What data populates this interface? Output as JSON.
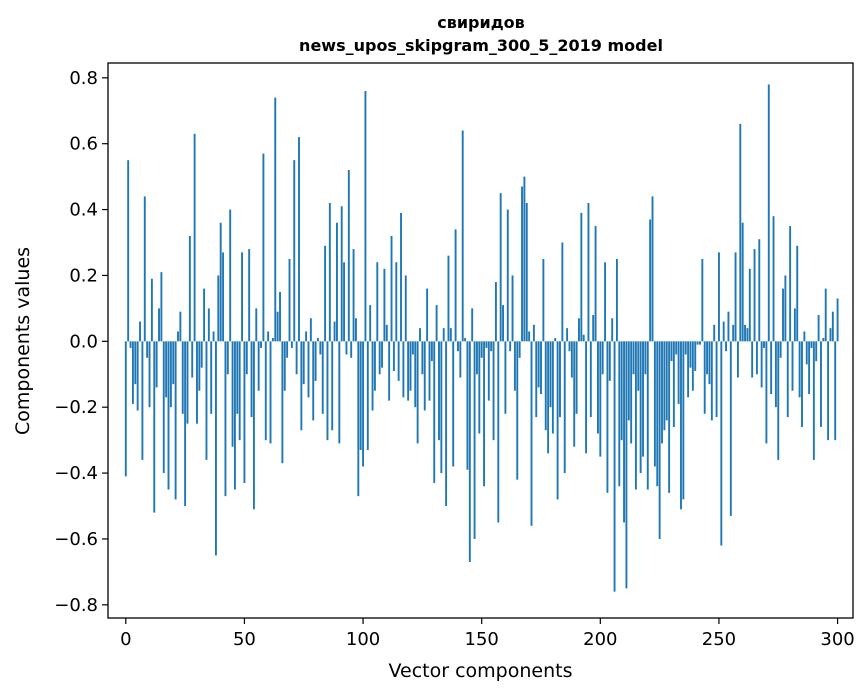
{
  "chart_data": {
    "type": "bar",
    "title_line1": "свиридов",
    "title_line2": "news_upos_skipgram_300_5_2019 model",
    "xlabel": "Vector components",
    "ylabel": "Components values",
    "xlim": [
      -7.5,
      306.5
    ],
    "ylim": [
      -0.84,
      0.845
    ],
    "xticks": [
      0,
      50,
      100,
      150,
      200,
      250,
      300
    ],
    "xtick_labels": [
      "0",
      "50",
      "100",
      "150",
      "200",
      "250",
      "300"
    ],
    "yticks": [
      -0.8,
      -0.6,
      -0.4,
      -0.2,
      0.0,
      0.2,
      0.4,
      0.6,
      0.8
    ],
    "ytick_labels": [
      "−0.8",
      "−0.6",
      "−0.4",
      "−0.2",
      "0.0",
      "0.2",
      "0.4",
      "0.6",
      "0.8"
    ],
    "bar_color": "#1f77b4",
    "grid": false,
    "values": [
      -0.41,
      0.55,
      -0.02,
      -0.19,
      -0.13,
      -0.21,
      0.06,
      -0.36,
      0.44,
      -0.05,
      -0.2,
      0.19,
      -0.52,
      -0.14,
      0.1,
      0.21,
      -0.4,
      -0.17,
      -0.45,
      -0.2,
      -0.13,
      -0.48,
      0.03,
      0.09,
      -0.22,
      -0.5,
      -0.25,
      0.32,
      -0.11,
      0.63,
      -0.25,
      -0.15,
      -0.08,
      0.16,
      -0.36,
      0.1,
      -0.22,
      0.03,
      -0.65,
      0.2,
      0.36,
      0.27,
      -0.47,
      -0.1,
      0.4,
      -0.32,
      -0.45,
      -0.22,
      -0.3,
      0.27,
      -0.43,
      -0.1,
      0.28,
      -0.23,
      -0.51,
      0.1,
      -0.15,
      -0.02,
      0.57,
      -0.3,
      0.03,
      -0.31,
      0.01,
      0.74,
      0.09,
      0.15,
      -0.37,
      -0.15,
      -0.05,
      0.25,
      -0.02,
      0.55,
      -0.1,
      0.62,
      -0.27,
      -0.13,
      0.03,
      -0.17,
      0.07,
      -0.24,
      -0.12,
      0.01,
      -0.04,
      -0.22,
      0.29,
      -0.3,
      0.42,
      -0.27,
      0.06,
      0.36,
      -0.31,
      0.41,
      0.24,
      -0.04,
      0.52,
      -0.05,
      0.28,
      0.07,
      -0.47,
      -0.33,
      -0.38,
      0.76,
      -0.33,
      0.11,
      -0.21,
      -0.15,
      0.24,
      -0.1,
      -0.08,
      0.22,
      0.05,
      -0.18,
      0.32,
      -0.09,
      0.24,
      -0.12,
      0.39,
      -0.17,
      0.2,
      -0.18,
      -0.15,
      -0.04,
      -0.2,
      -0.31,
      0.04,
      -0.1,
      -0.21,
      0.16,
      -0.18,
      -0.06,
      -0.43,
      0.11,
      -0.3,
      -0.4,
      0.04,
      -0.5,
      0.26,
      0.04,
      -0.38,
      0.34,
      -0.03,
      -0.11,
      0.64,
      0.01,
      -0.39,
      -0.67,
      0.1,
      -0.6,
      -0.1,
      -0.28,
      -0.05,
      -0.44,
      -0.02,
      -0.18,
      -0.03,
      -0.3,
      0.18,
      -0.55,
      0.45,
      0.11,
      -0.22,
      0.4,
      -0.03,
      0.2,
      -0.15,
      -0.42,
      -0.05,
      0.47,
      0.5,
      0.42,
      0.03,
      -0.56,
      0.05,
      -0.23,
      -0.14,
      -0.16,
      0.25,
      -0.27,
      -0.34,
      -0.2,
      -0.28,
      0.01,
      -0.48,
      -0.23,
      0.3,
      -0.4,
      0.04,
      -0.03,
      -0.11,
      -0.32,
      -0.22,
      0.07,
      0.39,
      0.02,
      -0.34,
      0.42,
      -0.23,
      0.08,
      0.35,
      -0.28,
      -0.35,
      -0.1,
      0.24,
      -0.46,
      -0.12,
      0.07,
      -0.76,
      0.25,
      -0.44,
      -0.3,
      -0.55,
      -0.75,
      -0.24,
      -0.31,
      -0.1,
      -0.45,
      -0.15,
      -0.4,
      -0.35,
      -0.1,
      -0.45,
      0.37,
      0.44,
      -0.38,
      -0.44,
      -0.6,
      -0.31,
      -0.27,
      -0.24,
      -0.46,
      -0.06,
      -0.26,
      -0.04,
      -0.19,
      -0.51,
      -0.48,
      -0.04,
      -0.17,
      -0.08,
      -0.15,
      -0.09,
      -0.01,
      -0.01,
      0.25,
      -0.22,
      -0.1,
      -0.13,
      -0.24,
      0.05,
      -0.23,
      0.27,
      -0.62,
      0.06,
      -0.03,
      0.09,
      -0.53,
      0.05,
      0.27,
      -0.11,
      0.66,
      0.36,
      0.05,
      0.04,
      0.22,
      -0.11,
      0.28,
      -0.1,
      0.31,
      -0.14,
      -0.02,
      -0.31,
      0.78,
      -0.16,
      0.38,
      -0.2,
      -0.36,
      -0.05,
      0.16,
      0.2,
      -0.23,
      0.35,
      -0.15,
      0.1,
      0.29,
      -0.17,
      -0.26,
      0.03,
      -0.07,
      -0.16,
      -0.02,
      -0.36,
      -0.06,
      0.08,
      -0.26,
      0.01,
      0.16,
      -0.3,
      0.04,
      0.09,
      -0.3,
      0.13
    ]
  }
}
